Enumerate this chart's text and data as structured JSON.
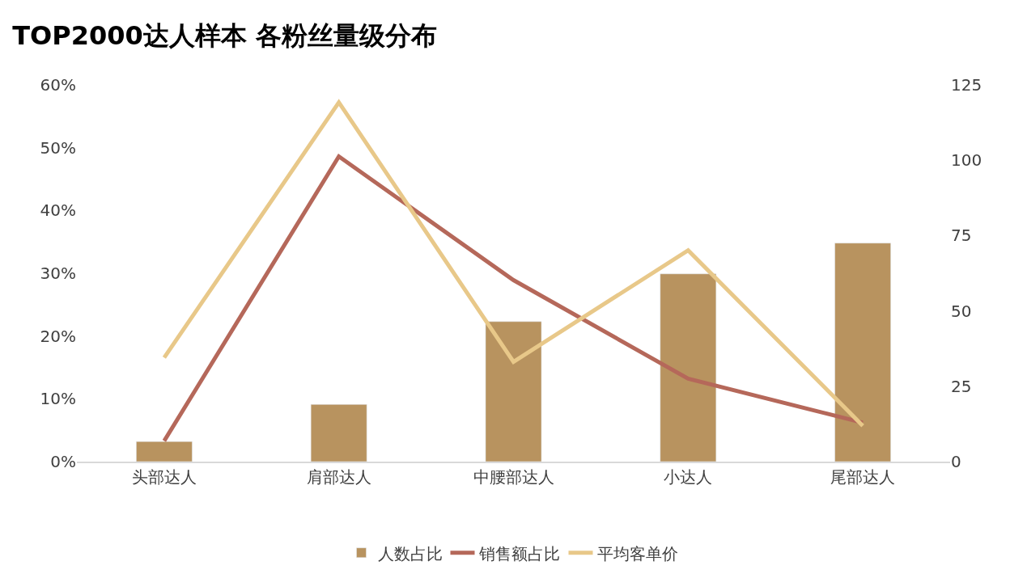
{
  "chart_data": {
    "type": "bar",
    "title": "TOP2000达人样本 各粉丝量级分布",
    "categories": [
      "头部达人",
      "肩部达人",
      "中腰部达人",
      "小达人",
      "尾部达人"
    ],
    "series": [
      {
        "name": "人数占比",
        "color": "#b8935f",
        "values": [
          3.2,
          9.1,
          22.3,
          29.9,
          34.8
        ]
      },
      {
        "name": "销售额占比",
        "type": "line",
        "color": "#b5685a",
        "values": [
          3.3,
          48.6,
          28.9,
          13.2,
          6.2
        ]
      },
      {
        "name": "平均客单价",
        "type": "line",
        "axis": "y2",
        "color": "#e8c889",
        "values": [
          34.5,
          119.2,
          33.1,
          70.1,
          11.9
        ]
      }
    ],
    "ylim": [
      0,
      60
    ],
    "yticks": [
      {
        "value": 0,
        "label": "0%"
      },
      {
        "value": 10,
        "label": "10%"
      },
      {
        "value": 20,
        "label": "20%"
      },
      {
        "value": 30,
        "label": "30%"
      },
      {
        "value": 40,
        "label": "40%"
      },
      {
        "value": 50,
        "label": "50%"
      },
      {
        "value": 60,
        "label": "60%"
      }
    ],
    "y2lim": [
      0,
      125
    ],
    "y2ticks": [
      0,
      25,
      50,
      75,
      100,
      125
    ],
    "legend": "bottom",
    "marker": "none",
    "line_style": "solid"
  }
}
